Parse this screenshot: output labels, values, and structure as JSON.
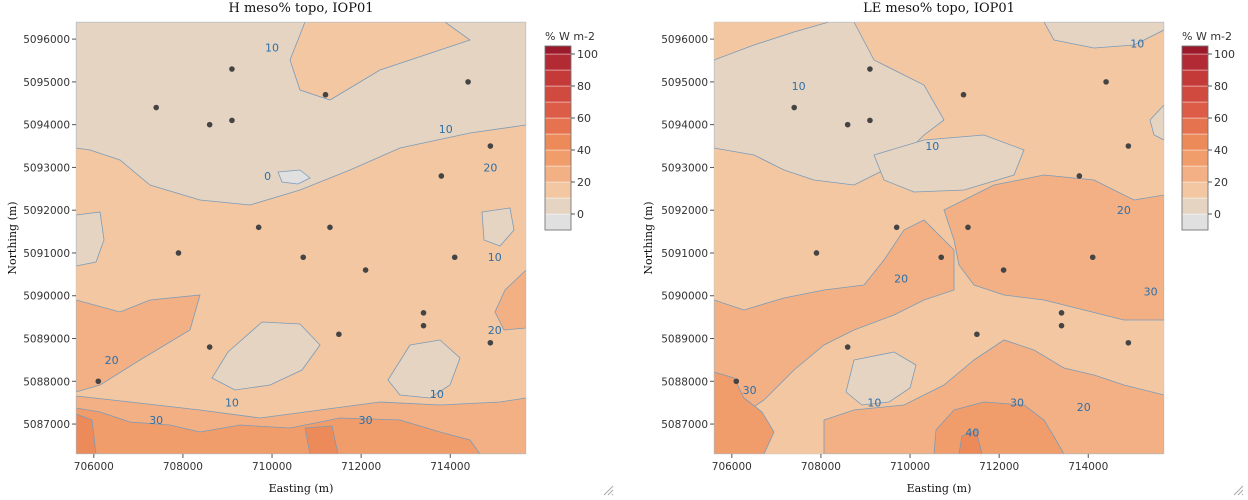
{
  "chart_data": [
    {
      "type": "contour",
      "title": "H meso% topo, IOP01",
      "xlabel": "Easting (m)",
      "ylabel": "Northing (m)",
      "xlim": [
        705600,
        715700
      ],
      "ylim": [
        5086300,
        5096400
      ],
      "x_ticks": [
        706000,
        708000,
        710000,
        712000,
        714000
      ],
      "x_tick_labels": [
        "706000",
        "708000",
        "710000",
        "712000",
        "714000"
      ],
      "y_ticks": [
        5087000,
        5088000,
        5089000,
        5090000,
        5091000,
        5092000,
        5093000,
        5094000,
        5095000,
        5096000
      ],
      "y_tick_labels": [
        "5087000",
        "5088000",
        "5089000",
        "5090000",
        "5091000",
        "5092000",
        "5093000",
        "5094000",
        "5095000",
        "5096000"
      ],
      "colorbar": {
        "title": "% W m-2",
        "min": -10,
        "max": 105,
        "levels": [
          -10,
          0,
          10,
          20,
          30,
          40,
          50,
          60,
          70,
          80,
          90,
          100,
          105
        ],
        "tick_values": [
          0,
          20,
          40,
          60,
          80,
          100
        ],
        "tick_labels": [
          "0",
          "20",
          "40",
          "60",
          "80",
          "100"
        ],
        "colors": [
          "#e0e0e0",
          "#e6d4c3",
          "#f2c7a2",
          "#f3b085",
          "#f19c6b",
          "#ed8a5a",
          "#e57350",
          "#dc5c47",
          "#d14a40",
          "#c43a39",
          "#b22a33",
          "#9a1a2c"
        ]
      },
      "contour_labels": [
        {
          "text": "10",
          "x": 710000,
          "y": 5095800
        },
        {
          "text": "0",
          "x": 709900,
          "y": 5092800
        },
        {
          "text": "10",
          "x": 713900,
          "y": 5093900
        },
        {
          "text": "20",
          "x": 714900,
          "y": 5093000
        },
        {
          "text": "10",
          "x": 715000,
          "y": 5090900
        },
        {
          "text": "20",
          "x": 715000,
          "y": 5089200
        },
        {
          "text": "20",
          "x": 706400,
          "y": 5088500
        },
        {
          "text": "10",
          "x": 709100,
          "y": 5087500
        },
        {
          "text": "30",
          "x": 707400,
          "y": 5087100
        },
        {
          "text": "30",
          "x": 712100,
          "y": 5087100
        },
        {
          "text": "10",
          "x": 713700,
          "y": 5087700
        }
      ],
      "stations": [
        {
          "x": 709100,
          "y": 5095300
        },
        {
          "x": 714400,
          "y": 5095000
        },
        {
          "x": 707400,
          "y": 5094400
        },
        {
          "x": 711200,
          "y": 5094700
        },
        {
          "x": 708600,
          "y": 5094000
        },
        {
          "x": 709100,
          "y": 5094100
        },
        {
          "x": 714900,
          "y": 5093500
        },
        {
          "x": 713800,
          "y": 5092800
        },
        {
          "x": 709700,
          "y": 5091600
        },
        {
          "x": 711300,
          "y": 5091600
        },
        {
          "x": 707900,
          "y": 5091000
        },
        {
          "x": 710700,
          "y": 5090900
        },
        {
          "x": 714100,
          "y": 5090900
        },
        {
          "x": 712100,
          "y": 5090600
        },
        {
          "x": 713400,
          "y": 5089600
        },
        {
          "x": 713400,
          "y": 5089300
        },
        {
          "x": 711500,
          "y": 5089100
        },
        {
          "x": 714900,
          "y": 5088900
        },
        {
          "x": 708600,
          "y": 5088800
        },
        {
          "x": 706100,
          "y": 5088000
        }
      ]
    },
    {
      "type": "contour",
      "title": "LE meso% topo, IOP01",
      "xlabel": "Easting (m)",
      "ylabel": "Northing (m)",
      "xlim": [
        705600,
        715700
      ],
      "ylim": [
        5086300,
        5096400
      ],
      "x_ticks": [
        706000,
        708000,
        710000,
        712000,
        714000
      ],
      "x_tick_labels": [
        "706000",
        "708000",
        "710000",
        "712000",
        "714000"
      ],
      "y_ticks": [
        5087000,
        5088000,
        5089000,
        5090000,
        5091000,
        5092000,
        5093000,
        5094000,
        5095000,
        5096000
      ],
      "y_tick_labels": [
        "5087000",
        "5088000",
        "5089000",
        "5090000",
        "5091000",
        "5092000",
        "5093000",
        "5094000",
        "5095000",
        "5096000"
      ],
      "colorbar": {
        "title": "% W m-2",
        "min": -10,
        "max": 105,
        "levels": [
          -10,
          0,
          10,
          20,
          30,
          40,
          50,
          60,
          70,
          80,
          90,
          100,
          105
        ],
        "tick_values": [
          0,
          20,
          40,
          60,
          80,
          100
        ],
        "tick_labels": [
          "0",
          "20",
          "40",
          "60",
          "80",
          "100"
        ],
        "colors": [
          "#e0e0e0",
          "#e6d4c3",
          "#f2c7a2",
          "#f3b085",
          "#f19c6b",
          "#ed8a5a",
          "#e57350",
          "#dc5c47",
          "#d14a40",
          "#c43a39",
          "#b22a33",
          "#9a1a2c"
        ]
      },
      "contour_labels": [
        {
          "text": "10",
          "x": 715100,
          "y": 5095900
        },
        {
          "text": "10",
          "x": 707500,
          "y": 5094900
        },
        {
          "text": "10",
          "x": 710500,
          "y": 5093500
        },
        {
          "text": "20",
          "x": 714800,
          "y": 5092000
        },
        {
          "text": "20",
          "x": 709800,
          "y": 5090400
        },
        {
          "text": "30",
          "x": 715400,
          "y": 5090100
        },
        {
          "text": "30",
          "x": 706400,
          "y": 5087800
        },
        {
          "text": "10",
          "x": 709200,
          "y": 5087500
        },
        {
          "text": "30",
          "x": 712400,
          "y": 5087500
        },
        {
          "text": "20",
          "x": 713900,
          "y": 5087400
        },
        {
          "text": "40",
          "x": 711400,
          "y": 5086800
        }
      ],
      "stations": [
        {
          "x": 709100,
          "y": 5095300
        },
        {
          "x": 714400,
          "y": 5095000
        },
        {
          "x": 707400,
          "y": 5094400
        },
        {
          "x": 711200,
          "y": 5094700
        },
        {
          "x": 708600,
          "y": 5094000
        },
        {
          "x": 709100,
          "y": 5094100
        },
        {
          "x": 714900,
          "y": 5093500
        },
        {
          "x": 713800,
          "y": 5092800
        },
        {
          "x": 709700,
          "y": 5091600
        },
        {
          "x": 711300,
          "y": 5091600
        },
        {
          "x": 707900,
          "y": 5091000
        },
        {
          "x": 710700,
          "y": 5090900
        },
        {
          "x": 714100,
          "y": 5090900
        },
        {
          "x": 712100,
          "y": 5090600
        },
        {
          "x": 713400,
          "y": 5089600
        },
        {
          "x": 713400,
          "y": 5089300
        },
        {
          "x": 711500,
          "y": 5089100
        },
        {
          "x": 714900,
          "y": 5088900
        },
        {
          "x": 708600,
          "y": 5088800
        },
        {
          "x": 706100,
          "y": 5088000
        }
      ]
    }
  ]
}
